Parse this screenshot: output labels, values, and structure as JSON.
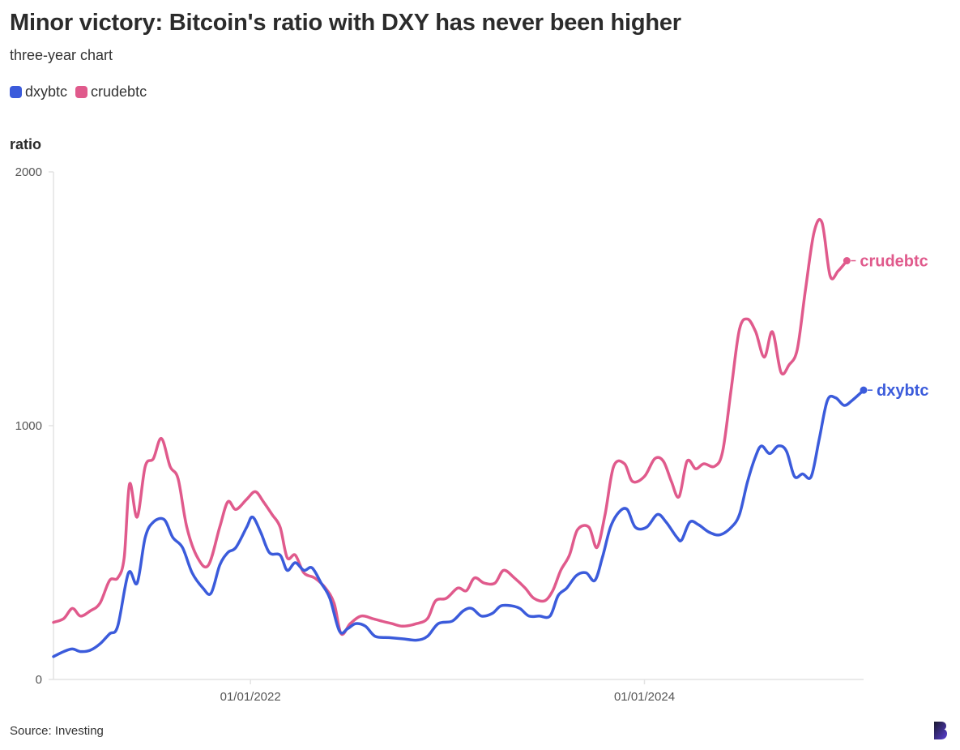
{
  "header": {
    "title": "Minor victory: Bitcoin's ratio with DXY has never been higher",
    "subtitle": "three-year chart"
  },
  "footer": {
    "source": "Source: Investing"
  },
  "colors": {
    "dxybtc": "#3b5bdb",
    "crudebtc": "#e05a8c",
    "axis": "#e3e3e3",
    "text": "#333333"
  },
  "icons": {
    "logo": "publisher-logo-icon"
  },
  "chart_data": {
    "type": "line",
    "ylabel": "ratio",
    "ylim": [
      0,
      2000
    ],
    "yticks": [
      0,
      1000,
      2000
    ],
    "ytick_labels": [
      "0",
      "1000",
      "2000"
    ],
    "xlim": [
      "2021-01-01",
      "2025-02-10"
    ],
    "xticks": [
      "2022-01-01",
      "2024-01-01"
    ],
    "xtick_labels": [
      "01/01/2022",
      "01/01/2024"
    ],
    "legend": "top-left",
    "grid": false,
    "series": [
      {
        "name": "dxybtc",
        "color": "#3b5bdb",
        "points": [
          [
            "2021-01-01",
            90
          ],
          [
            "2021-01-20",
            110
          ],
          [
            "2021-02-05",
            120
          ],
          [
            "2021-02-20",
            110
          ],
          [
            "2021-03-10",
            115
          ],
          [
            "2021-03-28",
            140
          ],
          [
            "2021-04-15",
            180
          ],
          [
            "2021-04-30",
            210
          ],
          [
            "2021-05-20",
            420
          ],
          [
            "2021-06-05",
            380
          ],
          [
            "2021-06-20",
            560
          ],
          [
            "2021-07-05",
            620
          ],
          [
            "2021-07-25",
            630
          ],
          [
            "2021-08-10",
            560
          ],
          [
            "2021-08-28",
            520
          ],
          [
            "2021-09-15",
            420
          ],
          [
            "2021-10-05",
            360
          ],
          [
            "2021-10-20",
            340
          ],
          [
            "2021-11-05",
            450
          ],
          [
            "2021-11-20",
            500
          ],
          [
            "2021-12-05",
            520
          ],
          [
            "2021-12-25",
            600
          ],
          [
            "2022-01-05",
            640
          ],
          [
            "2022-01-20",
            580
          ],
          [
            "2022-02-05",
            500
          ],
          [
            "2022-02-25",
            490
          ],
          [
            "2022-03-10",
            430
          ],
          [
            "2022-03-25",
            460
          ],
          [
            "2022-04-10",
            430
          ],
          [
            "2022-04-25",
            440
          ],
          [
            "2022-05-12",
            380
          ],
          [
            "2022-05-28",
            320
          ],
          [
            "2022-06-15",
            190
          ],
          [
            "2022-06-30",
            200
          ],
          [
            "2022-07-15",
            220
          ],
          [
            "2022-08-02",
            210
          ],
          [
            "2022-08-20",
            170
          ],
          [
            "2022-09-15",
            165
          ],
          [
            "2022-10-10",
            160
          ],
          [
            "2022-11-05",
            155
          ],
          [
            "2022-11-25",
            170
          ],
          [
            "2022-12-15",
            220
          ],
          [
            "2023-01-10",
            230
          ],
          [
            "2023-01-30",
            270
          ],
          [
            "2023-02-15",
            280
          ],
          [
            "2023-03-05",
            250
          ],
          [
            "2023-03-25",
            260
          ],
          [
            "2023-04-10",
            290
          ],
          [
            "2023-04-30",
            290
          ],
          [
            "2023-05-15",
            280
          ],
          [
            "2023-06-01",
            250
          ],
          [
            "2023-06-20",
            250
          ],
          [
            "2023-07-10",
            250
          ],
          [
            "2023-07-25",
            330
          ],
          [
            "2023-08-10",
            360
          ],
          [
            "2023-08-28",
            410
          ],
          [
            "2023-09-15",
            420
          ],
          [
            "2023-10-01",
            390
          ],
          [
            "2023-10-15",
            480
          ],
          [
            "2023-10-30",
            600
          ],
          [
            "2023-11-15",
            660
          ],
          [
            "2023-11-30",
            670
          ],
          [
            "2023-12-15",
            600
          ],
          [
            "2024-01-05",
            600
          ],
          [
            "2024-01-25",
            650
          ],
          [
            "2024-02-10",
            620
          ],
          [
            "2024-03-01",
            560
          ],
          [
            "2024-03-10",
            550
          ],
          [
            "2024-03-25",
            620
          ],
          [
            "2024-04-10",
            610
          ],
          [
            "2024-04-30",
            580
          ],
          [
            "2024-05-20",
            570
          ],
          [
            "2024-06-10",
            600
          ],
          [
            "2024-06-25",
            650
          ],
          [
            "2024-07-10",
            780
          ],
          [
            "2024-07-25",
            880
          ],
          [
            "2024-08-05",
            920
          ],
          [
            "2024-08-20",
            890
          ],
          [
            "2024-09-05",
            920
          ],
          [
            "2024-09-20",
            900
          ],
          [
            "2024-10-05",
            800
          ],
          [
            "2024-10-20",
            810
          ],
          [
            "2024-11-05",
            800
          ],
          [
            "2024-11-20",
            950
          ],
          [
            "2024-12-05",
            1100
          ],
          [
            "2024-12-20",
            1110
          ],
          [
            "2025-01-05",
            1080
          ],
          [
            "2025-01-20",
            1100
          ],
          [
            "2025-02-10",
            1140
          ]
        ]
      },
      {
        "name": "crudebtc",
        "color": "#e05a8c",
        "points": [
          [
            "2021-01-01",
            225
          ],
          [
            "2021-01-20",
            240
          ],
          [
            "2021-02-05",
            280
          ],
          [
            "2021-02-20",
            250
          ],
          [
            "2021-03-10",
            270
          ],
          [
            "2021-03-28",
            300
          ],
          [
            "2021-04-15",
            390
          ],
          [
            "2021-04-30",
            400
          ],
          [
            "2021-05-12",
            480
          ],
          [
            "2021-05-22",
            770
          ],
          [
            "2021-06-05",
            640
          ],
          [
            "2021-06-20",
            840
          ],
          [
            "2021-07-05",
            870
          ],
          [
            "2021-07-20",
            950
          ],
          [
            "2021-08-05",
            840
          ],
          [
            "2021-08-20",
            790
          ],
          [
            "2021-09-05",
            600
          ],
          [
            "2021-09-25",
            480
          ],
          [
            "2021-10-15",
            450
          ],
          [
            "2021-11-05",
            600
          ],
          [
            "2021-11-20",
            700
          ],
          [
            "2021-12-05",
            670
          ],
          [
            "2021-12-25",
            710
          ],
          [
            "2022-01-10",
            740
          ],
          [
            "2022-01-25",
            700
          ],
          [
            "2022-02-10",
            650
          ],
          [
            "2022-02-25",
            600
          ],
          [
            "2022-03-10",
            480
          ],
          [
            "2022-03-25",
            490
          ],
          [
            "2022-04-10",
            420
          ],
          [
            "2022-04-30",
            400
          ],
          [
            "2022-05-20",
            360
          ],
          [
            "2022-06-05",
            300
          ],
          [
            "2022-06-18",
            180
          ],
          [
            "2022-07-05",
            220
          ],
          [
            "2022-07-25",
            250
          ],
          [
            "2022-08-15",
            240
          ],
          [
            "2022-09-01",
            230
          ],
          [
            "2022-09-20",
            220
          ],
          [
            "2022-10-10",
            210
          ],
          [
            "2022-11-05",
            220
          ],
          [
            "2022-11-25",
            240
          ],
          [
            "2022-12-10",
            310
          ],
          [
            "2022-12-30",
            320
          ],
          [
            "2023-01-20",
            360
          ],
          [
            "2023-02-05",
            350
          ],
          [
            "2023-02-20",
            400
          ],
          [
            "2023-03-10",
            380
          ],
          [
            "2023-03-30",
            380
          ],
          [
            "2023-04-15",
            430
          ],
          [
            "2023-05-05",
            400
          ],
          [
            "2023-05-25",
            360
          ],
          [
            "2023-06-10",
            320
          ],
          [
            "2023-06-30",
            310
          ],
          [
            "2023-07-15",
            350
          ],
          [
            "2023-07-30",
            430
          ],
          [
            "2023-08-15",
            490
          ],
          [
            "2023-08-30",
            590
          ],
          [
            "2023-09-20",
            600
          ],
          [
            "2023-10-05",
            520
          ],
          [
            "2023-10-20",
            650
          ],
          [
            "2023-11-05",
            840
          ],
          [
            "2023-11-25",
            850
          ],
          [
            "2023-12-10",
            780
          ],
          [
            "2024-01-01",
            800
          ],
          [
            "2024-01-20",
            870
          ],
          [
            "2024-02-05",
            860
          ],
          [
            "2024-02-20",
            780
          ],
          [
            "2024-03-05",
            720
          ],
          [
            "2024-03-20",
            860
          ],
          [
            "2024-04-05",
            830
          ],
          [
            "2024-04-20",
            850
          ],
          [
            "2024-05-10",
            840
          ],
          [
            "2024-05-25",
            900
          ],
          [
            "2024-06-10",
            1150
          ],
          [
            "2024-06-25",
            1380
          ],
          [
            "2024-07-10",
            1420
          ],
          [
            "2024-07-25",
            1370
          ],
          [
            "2024-08-10",
            1270
          ],
          [
            "2024-08-25",
            1370
          ],
          [
            "2024-09-10",
            1210
          ],
          [
            "2024-09-25",
            1240
          ],
          [
            "2024-10-10",
            1300
          ],
          [
            "2024-10-25",
            1530
          ],
          [
            "2024-11-10",
            1760
          ],
          [
            "2024-11-25",
            1800
          ],
          [
            "2024-12-10",
            1590
          ],
          [
            "2024-12-25",
            1610
          ],
          [
            "2025-01-10",
            1650
          ]
        ]
      }
    ]
  }
}
